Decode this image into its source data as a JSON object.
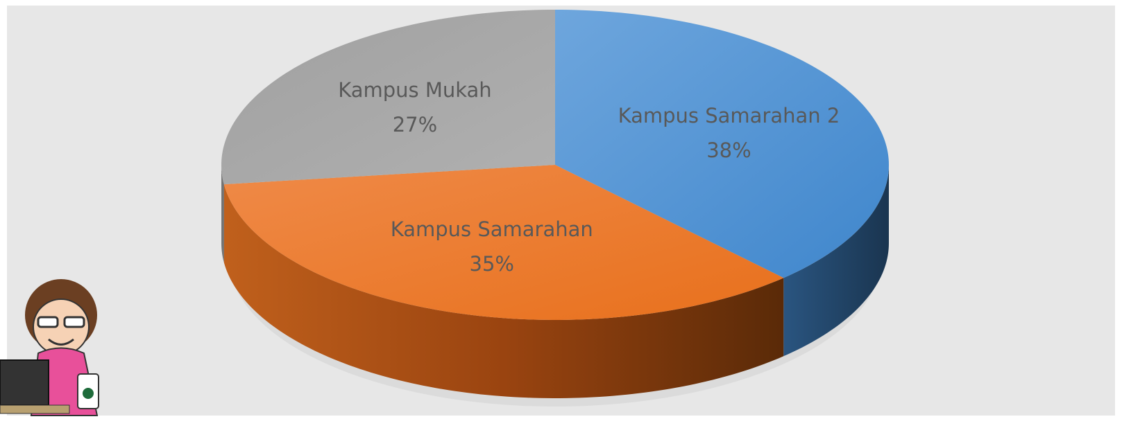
{
  "chart_data": {
    "type": "pie",
    "categories": [
      "Kampus Samarahan 2",
      "Kampus Samarahan",
      "Kampus Mukah"
    ],
    "values": [
      38,
      35,
      27
    ],
    "value_labels": [
      "38%",
      "35%",
      "27%"
    ],
    "colors": [
      "#5b9bd5",
      "#ed7d31",
      "#a5a5a5"
    ]
  }
}
